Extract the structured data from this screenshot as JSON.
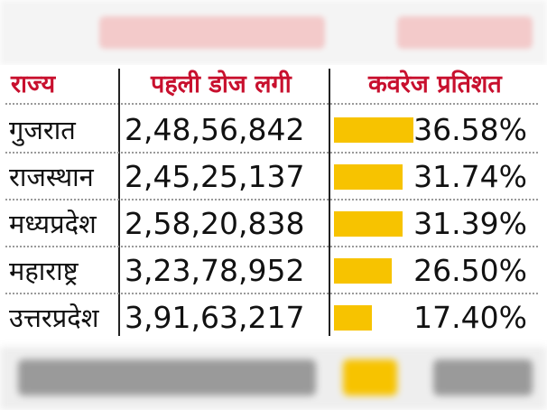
{
  "header": {
    "state_label": "राज्य",
    "dose_label": "पहली डोज लगी",
    "coverage_label": "कवरेज प्रतिशत"
  },
  "chart_data": {
    "type": "table",
    "columns": [
      "राज्य",
      "पहली डोज लगी",
      "कवरेज प्रतिशत"
    ],
    "rows": [
      {
        "state": "गुजरात",
        "first_dose": "2,48,56,842",
        "coverage": "36.58%",
        "coverage_value": 36.58
      },
      {
        "state": "राजस्थान",
        "first_dose": "2,45,25,137",
        "coverage": "31.74%",
        "coverage_value": 31.74
      },
      {
        "state": "मध्यप्रदेश",
        "first_dose": "2,58,20,838",
        "coverage": "31.39%",
        "coverage_value": 31.39
      },
      {
        "state": "महाराष्ट्र",
        "first_dose": "3,23,78,952",
        "coverage": "26.50%",
        "coverage_value": 26.5
      },
      {
        "state": "उत्तरप्रदेश",
        "first_dose": "3,91,63,217",
        "coverage": "17.40%",
        "coverage_value": 17.4
      }
    ],
    "bar_color": "#f7c300",
    "accent_color": "#c8102e"
  }
}
